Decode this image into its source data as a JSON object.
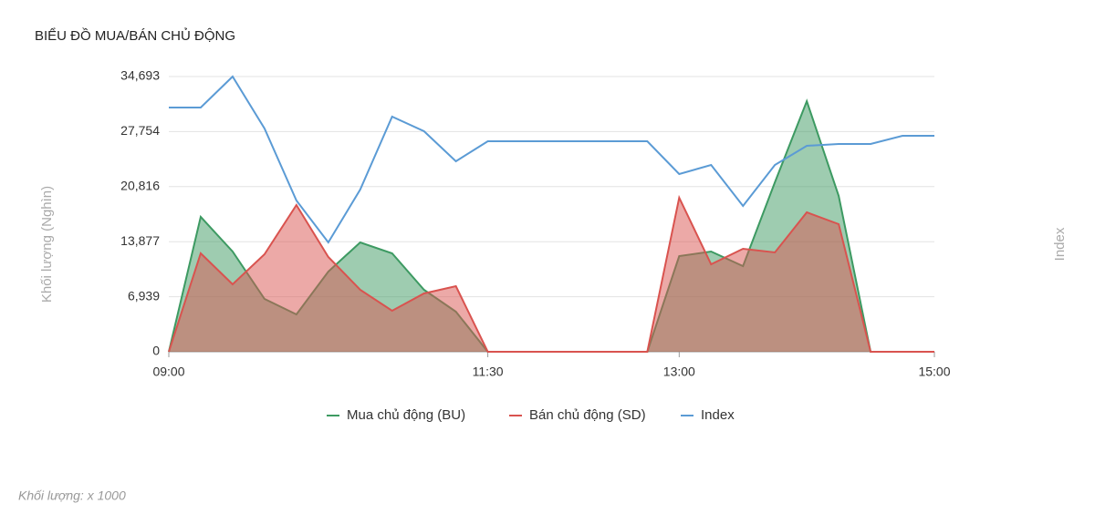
{
  "chart_data": {
    "type": "area",
    "title": "BIỂU ĐỒ MUA/BÁN CHỦ ĐỘNG",
    "y_label": "Khối lượng (Nghìn)",
    "y2_label": "Index",
    "note": "Khối lượng: x 1000",
    "x": [
      "09:00",
      "09:15",
      "09:30",
      "09:45",
      "10:00",
      "10:15",
      "10:30",
      "10:45",
      "11:00",
      "11:15",
      "11:30",
      "11:45",
      "12:00",
      "12:15",
      "12:30",
      "12:45",
      "13:00",
      "13:15",
      "13:30",
      "13:45",
      "14:00",
      "14:15",
      "14:30",
      "14:45",
      "15:00"
    ],
    "xticks": [
      "09:00",
      "11:30",
      "13:00",
      "15:00"
    ],
    "ylim": [
      0,
      34693
    ],
    "yticks": [
      0,
      {
        "value": 6939,
        "label": "6,939"
      },
      {
        "value": 13877,
        "label": "13,877"
      },
      {
        "value": 20816,
        "label": "20,816"
      },
      {
        "value": 27754,
        "label": "27,754"
      },
      {
        "value": 34693,
        "label": "34,693"
      }
    ],
    "y2lim": [
      0,
      34693
    ],
    "grid": true,
    "legend": "bottom",
    "series": [
      {
        "name": "Mua chủ động (BU)",
        "color": "#3d9a62",
        "kind": "area",
        "values": [
          0,
          17002,
          12637,
          6663,
          4710,
          10109,
          13786,
          12407,
          7812,
          5055,
          0,
          0,
          0,
          0,
          0,
          0,
          12062,
          12637,
          10799,
          21368,
          31592,
          19644,
          0,
          0,
          0
        ]
      },
      {
        "name": "Bán chủ động (SD)",
        "color": "#d9534f",
        "kind": "area",
        "values": [
          0,
          12407,
          8501,
          12292,
          18496,
          11948,
          7812,
          5170,
          7352,
          8271,
          0,
          0,
          0,
          0,
          0,
          0,
          19415,
          11028,
          12981,
          12522,
          17577,
          16083,
          0,
          0,
          0
        ]
      },
      {
        "name": "Index",
        "color": "#5b9bd5",
        "kind": "line",
        "axis": "y2",
        "values": [
          30788,
          30788,
          34693,
          28146,
          19070,
          13786,
          20449,
          29639,
          27801,
          24010,
          26537,
          26537,
          26537,
          26537,
          26537,
          26537,
          22402,
          23550,
          18381,
          23550,
          25963,
          26193,
          26193,
          27227,
          27227
        ]
      }
    ]
  }
}
